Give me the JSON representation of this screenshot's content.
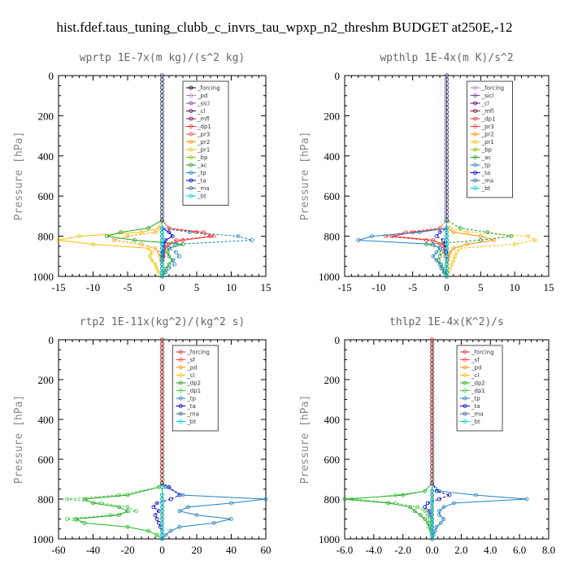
{
  "figure": {
    "title": "hist.fdef.taus_tuning_clubb_c_invrs_tau_wpxp_n2_threshm  BUDGET at250E,-12"
  },
  "chart_data": [
    {
      "type": "line",
      "title": "wprtp   1E-7x(m kg)/(s^2 kg)",
      "ylabel": "Pressure [hPa]",
      "xlim": [
        -15,
        15
      ],
      "ylim": [
        1000,
        0
      ],
      "xticks": [
        "-15",
        "-10",
        "-5",
        "0",
        "5",
        "10",
        "15"
      ],
      "yticks": [
        "0",
        "200",
        "400",
        "600",
        "800",
        "1000"
      ],
      "y": [
        720,
        760,
        780,
        800,
        820,
        840,
        860,
        880,
        900,
        920,
        940,
        960,
        980,
        1000
      ],
      "series": [
        {
          "name": "_forcing",
          "color": "#000000",
          "values": [
            0,
            0,
            0,
            0,
            0,
            0,
            0,
            0,
            0,
            0,
            0,
            0,
            0,
            0
          ]
        },
        {
          "name": "_pd",
          "color": "#c080c0",
          "values": [
            0,
            0,
            0,
            0,
            0,
            0,
            0,
            0,
            0,
            0,
            0,
            0,
            0,
            0
          ]
        },
        {
          "name": "_sicl",
          "color": "#8040a0",
          "values": [
            0,
            0,
            0,
            0,
            0,
            0,
            0,
            0,
            0,
            0,
            0,
            0,
            0,
            0
          ]
        },
        {
          "name": "_cl",
          "color": "#600060",
          "values": [
            0,
            0,
            0,
            0,
            0,
            0,
            0,
            0,
            0,
            0,
            0,
            0,
            0,
            0
          ]
        },
        {
          "name": "_mfl",
          "color": "#800040",
          "values": [
            0,
            0,
            0,
            0,
            0,
            0,
            0,
            0,
            0,
            0,
            0,
            0,
            0,
            0
          ]
        },
        {
          "name": "_dp1",
          "color": "#e03030",
          "values": [
            0,
            0,
            5,
            7,
            2,
            0.5,
            0,
            0,
            0,
            0,
            0,
            0,
            0,
            0
          ]
        },
        {
          "name": "_pr3",
          "color": "#ff4040",
          "values": [
            0,
            1,
            6,
            7.5,
            3,
            1,
            0.5,
            0.3,
            0.2,
            0.1,
            0,
            0,
            0,
            0
          ]
        },
        {
          "name": "_pr2",
          "color": "#ff9000",
          "values": [
            0,
            0,
            -1,
            -5,
            -7,
            -3,
            -1,
            -0.5,
            -0.3,
            -0.2,
            0,
            0,
            0,
            0
          ]
        },
        {
          "name": "_pr1",
          "color": "#f0c000",
          "values": [
            0,
            -0.5,
            -3,
            -12,
            -15,
            -10,
            -2,
            -1.5,
            -1.8,
            -1.5,
            -1,
            -0.8,
            -0.5,
            0
          ]
        },
        {
          "name": "_bp",
          "color": "#80c000",
          "values": [
            0,
            0,
            0,
            0,
            0,
            0,
            0,
            0,
            0,
            0,
            0,
            0,
            0,
            0
          ]
        },
        {
          "name": "_ac",
          "color": "#20a020",
          "values": [
            0,
            -2,
            -6,
            -8,
            -4,
            3,
            1,
            0.8,
            1,
            1.5,
            1,
            0.5,
            0.3,
            0
          ]
        },
        {
          "name": "_tp",
          "color": "#2080c0",
          "values": [
            0,
            0,
            4,
            11,
            13,
            2,
            1,
            2,
            2.5,
            1.5,
            1.8,
            1,
            0.5,
            0
          ]
        },
        {
          "name": "_ta",
          "color": "#0000c0",
          "values": [
            0,
            0,
            1,
            1.5,
            0.5,
            0.2,
            0.2,
            0.1,
            0.1,
            0,
            0,
            0,
            0,
            0
          ]
        },
        {
          "name": "_ma",
          "color": "#406080",
          "values": [
            0,
            0,
            0,
            0,
            0,
            0,
            0,
            0,
            0,
            0,
            0,
            0,
            0,
            0
          ]
        },
        {
          "name": "_bt",
          "color": "#00d0d0",
          "values": [
            0,
            0,
            0,
            0,
            0,
            0,
            0,
            0,
            0,
            0,
            0,
            0,
            0,
            0
          ]
        }
      ]
    },
    {
      "type": "line",
      "title": "wpthlp   1E-4x(m K)/s^2",
      "ylabel": "Pressure [hPa]",
      "xlim": [
        -15,
        15
      ],
      "ylim": [
        1000,
        0
      ],
      "xticks": [
        "-15",
        "-10",
        "-5",
        "0",
        "5",
        "10",
        "15"
      ],
      "yticks": [
        "0",
        "200",
        "400",
        "600",
        "800",
        "1000"
      ],
      "y": [
        720,
        760,
        780,
        800,
        820,
        840,
        860,
        880,
        900,
        920,
        940,
        960,
        980,
        1000
      ],
      "series": [
        {
          "name": "_forcing",
          "color": "#c080c0",
          "values": [
            0,
            0,
            0,
            0,
            0,
            0,
            0,
            0,
            0,
            0,
            0,
            0,
            0,
            0
          ]
        },
        {
          "name": "_sicl",
          "color": "#8040a0",
          "values": [
            0,
            0,
            0,
            0,
            0,
            0,
            0,
            0,
            0,
            0,
            0,
            0,
            0,
            0
          ]
        },
        {
          "name": "_cl",
          "color": "#600060",
          "values": [
            0,
            0,
            0,
            0,
            0,
            0,
            0,
            0,
            0,
            0,
            0,
            0,
            0,
            0
          ]
        },
        {
          "name": "_mfl",
          "color": "#800040",
          "values": [
            0,
            0,
            0,
            0,
            0,
            0,
            0,
            0,
            0,
            0,
            0,
            0,
            0,
            0
          ]
        },
        {
          "name": "_dp1",
          "color": "#e03030",
          "values": [
            0,
            0,
            -5,
            -8,
            -2,
            -0.5,
            0,
            0,
            0,
            0,
            0,
            0,
            0,
            0
          ]
        },
        {
          "name": "_pr3",
          "color": "#ff4040",
          "values": [
            0,
            -1,
            -6,
            -9,
            -3,
            -1,
            -0.5,
            -0.3,
            -0.2,
            0,
            0,
            0,
            0,
            0
          ]
        },
        {
          "name": "_pr2",
          "color": "#ff9000",
          "values": [
            0,
            0,
            1,
            5,
            7,
            3,
            1,
            0.5,
            0.3,
            0.2,
            0,
            0,
            0,
            0
          ]
        },
        {
          "name": "_pr1",
          "color": "#f0c000",
          "values": [
            0,
            0.5,
            3,
            12,
            13,
            10,
            2,
            1.5,
            1.2,
            1,
            0.8,
            0.5,
            0.3,
            0
          ]
        },
        {
          "name": "_bp",
          "color": "#80c000",
          "values": [
            0,
            0,
            0,
            0,
            0,
            0,
            0,
            0,
            0,
            0,
            0,
            0,
            0,
            0
          ]
        },
        {
          "name": "_ac",
          "color": "#20a020",
          "values": [
            0,
            2,
            6,
            9.5,
            5,
            -3,
            -1,
            -0.8,
            -1,
            -1.2,
            -0.8,
            -0.5,
            -0.3,
            0
          ]
        },
        {
          "name": "_tp",
          "color": "#2080c0",
          "values": [
            0,
            0,
            -4,
            -11,
            -13,
            -2,
            -1,
            -1.5,
            -2,
            -1.5,
            -1,
            -0.8,
            -0.4,
            0
          ]
        },
        {
          "name": "_ta",
          "color": "#0000c0",
          "values": [
            0,
            0,
            -1,
            -1.5,
            -0.5,
            -0.2,
            -0.2,
            -0.1,
            0,
            0,
            0,
            0,
            0,
            0
          ]
        },
        {
          "name": "_ma",
          "color": "#406080",
          "values": [
            0,
            0,
            0,
            0,
            0,
            0,
            0,
            0,
            0,
            0,
            0,
            0,
            0,
            0
          ]
        },
        {
          "name": "_bt",
          "color": "#00d0d0",
          "values": [
            0,
            0,
            0,
            0,
            0,
            0,
            0,
            0,
            0,
            0,
            0,
            0,
            0,
            0
          ]
        }
      ]
    },
    {
      "type": "line",
      "title": "rtp2   1E-11x(kg^2)/(kg^2 s)",
      "ylabel": "Pressure [hPa]",
      "xlim": [
        -60,
        60
      ],
      "ylim": [
        1000,
        0
      ],
      "xticks": [
        "-60",
        "-40",
        "-20",
        "0",
        "20",
        "40",
        "60"
      ],
      "yticks": [
        "0",
        "200",
        "400",
        "600",
        "800",
        "1000"
      ],
      "y": [
        720,
        740,
        780,
        800,
        820,
        840,
        860,
        880,
        900,
        920,
        940,
        960,
        980,
        1000
      ],
      "series": [
        {
          "name": "_forcing",
          "color": "#e03030",
          "values": [
            0,
            0,
            0,
            0,
            0,
            0,
            0,
            0,
            0,
            0,
            0,
            0,
            0,
            0
          ]
        },
        {
          "name": "_sf",
          "color": "#ff4040",
          "values": [
            0,
            0,
            0,
            0,
            0,
            0,
            0,
            0,
            0,
            0,
            0,
            0,
            0,
            0
          ]
        },
        {
          "name": "_pd",
          "color": "#ff9000",
          "values": [
            0,
            0,
            0,
            0,
            0,
            0,
            0,
            0,
            0,
            0,
            0,
            0,
            0,
            0
          ]
        },
        {
          "name": "_cl",
          "color": "#f0c000",
          "values": [
            0,
            0,
            0,
            0,
            0,
            0,
            0,
            0,
            0,
            0,
            0,
            0,
            0,
            0
          ]
        },
        {
          "name": "_dp2",
          "color": "#20a020",
          "values": [
            0,
            -2,
            -20,
            -45,
            -40,
            -25,
            -20,
            -25,
            -50,
            -45,
            -20,
            -8,
            -3,
            0
          ]
        },
        {
          "name": "_dp1",
          "color": "#40d040",
          "values": [
            0,
            -2,
            -25,
            -55,
            -35,
            -20,
            -15,
            -30,
            -55,
            -45,
            -20,
            -8,
            -3,
            0
          ]
        },
        {
          "name": "_tp",
          "color": "#2080c0",
          "values": [
            0,
            2,
            12,
            60,
            40,
            15,
            10,
            20,
            40,
            30,
            10,
            5,
            2,
            0
          ]
        },
        {
          "name": "_ta",
          "color": "#0000c0",
          "values": [
            0,
            4,
            10,
            5,
            -3,
            -5,
            -2,
            -4,
            -3,
            -2,
            -1,
            0,
            0,
            0
          ]
        },
        {
          "name": "_ma",
          "color": "#406080",
          "values": [
            0,
            0,
            0,
            0,
            0,
            0,
            0,
            0,
            0,
            0,
            0,
            0,
            0,
            0
          ]
        },
        {
          "name": "_bt",
          "color": "#00d0d0",
          "values": [
            0,
            0,
            0,
            0,
            0,
            0,
            0,
            0,
            0,
            0,
            0,
            0,
            0,
            0
          ]
        }
      ]
    },
    {
      "type": "line",
      "title": "thlp2   1E-4x(K^2)/s",
      "ylabel": "Pressure [hPa]",
      "xlim": [
        -6,
        8
      ],
      "ylim": [
        1000,
        0
      ],
      "xticks": [
        "-6.0",
        "-4.0",
        "-2.0",
        "0.0",
        "2.0",
        "4.0",
        "6.0",
        "8.0"
      ],
      "yticks": [
        "0",
        "200",
        "400",
        "600",
        "800",
        "1000"
      ],
      "y": [
        720,
        760,
        780,
        800,
        820,
        840,
        860,
        880,
        900,
        920,
        940,
        960,
        980,
        1000
      ],
      "series": [
        {
          "name": "_forcing",
          "color": "#e03030",
          "values": [
            0,
            0,
            0,
            0,
            0,
            0,
            0,
            0,
            0,
            0,
            0,
            0,
            0,
            0
          ]
        },
        {
          "name": "_sf",
          "color": "#ff4040",
          "values": [
            0,
            0,
            0,
            0,
            0,
            0,
            0,
            0,
            0,
            0,
            0,
            0,
            0,
            0
          ]
        },
        {
          "name": "_pd",
          "color": "#ff9000",
          "values": [
            0,
            0,
            0,
            0,
            0,
            0,
            0,
            0,
            0,
            0,
            0,
            0,
            0,
            0
          ]
        },
        {
          "name": "_cl",
          "color": "#f0c000",
          "values": [
            0,
            0,
            0,
            0,
            0,
            0,
            0,
            0,
            0,
            0,
            0,
            0,
            0,
            0
          ]
        },
        {
          "name": "_dp2",
          "color": "#20a020",
          "values": [
            0,
            -0.5,
            -2,
            -6,
            -3,
            -1.5,
            -1.2,
            -0.8,
            -0.5,
            -0.3,
            -0.2,
            -0.1,
            0,
            0
          ]
        },
        {
          "name": "_dp1",
          "color": "#40d040",
          "values": [
            0,
            -0.5,
            -2.5,
            -5.5,
            -2.5,
            -1,
            -0.5,
            -0.3,
            -0.2,
            -0.1,
            0,
            0,
            0,
            0
          ]
        },
        {
          "name": "_tp",
          "color": "#2080c0",
          "values": [
            0,
            0.5,
            3,
            6.5,
            1.5,
            0.8,
            0.5,
            0.5,
            0.8,
            0.6,
            0.3,
            0.2,
            0.1,
            0
          ]
        },
        {
          "name": "_ta",
          "color": "#0000c0",
          "values": [
            0,
            0.3,
            1.2,
            0.5,
            -0.3,
            -0.5,
            -0.2,
            -0.1,
            0,
            0,
            0,
            0,
            0,
            0
          ]
        },
        {
          "name": "_ma",
          "color": "#406080",
          "values": [
            0,
            0,
            0,
            0,
            0,
            0,
            0,
            0,
            0,
            0,
            0,
            0,
            0,
            0
          ]
        },
        {
          "name": "_bt",
          "color": "#00d0d0",
          "values": [
            0,
            0,
            0,
            0,
            0,
            0,
            0,
            0,
            0,
            0,
            0,
            0,
            0,
            0
          ]
        }
      ]
    }
  ]
}
